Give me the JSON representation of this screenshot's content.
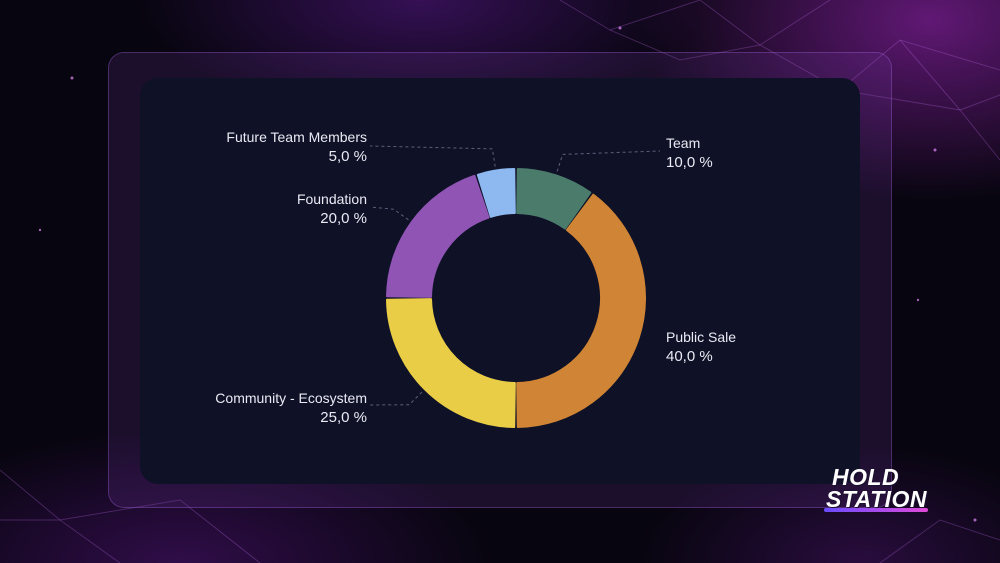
{
  "chart_data": {
    "type": "pie",
    "style": "donut",
    "series": [
      {
        "name": "Team",
        "value": 10.0,
        "label": "10,0 %",
        "color": "#4a7b6b"
      },
      {
        "name": "Public Sale",
        "value": 40.0,
        "label": "40,0 %",
        "color": "#cf8535"
      },
      {
        "name": "Community - Ecosystem",
        "value": 25.0,
        "label": "25,0 %",
        "color": "#e9cd46"
      },
      {
        "name": "Foundation",
        "value": 20.0,
        "label": "20,0 %",
        "color": "#8f54b4"
      },
      {
        "name": "Future Team Members",
        "value": 5.0,
        "label": "5,0 %",
        "color": "#8db9f0"
      }
    ],
    "start_angle_deg": 0,
    "direction": "clockwise",
    "legend": "none",
    "labels_outside": true
  },
  "logo": {
    "line1": "HOLD",
    "line2": "STATION"
  },
  "colors": {
    "card_background": "#0f1127",
    "page_background": "#07050f",
    "label_text": "#e9eaf3",
    "leader_line": "#5b5f7a"
  }
}
